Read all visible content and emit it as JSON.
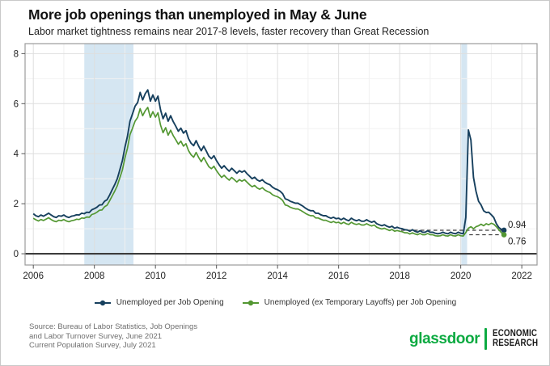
{
  "header": {
    "title": "More job openings than unemployed in May & June",
    "subtitle": "Labor market tightness remains near 2017-8 levels, faster recovery than Great Recession"
  },
  "chart_data": {
    "type": "line",
    "title": "More job openings than unemployed in May & June",
    "xlabel": "",
    "ylabel": "",
    "x_start": 2006.0,
    "x_step": 0.0833333,
    "xlim": [
      2005.73,
      2022.5
    ],
    "ylim": [
      -0.45,
      8.4
    ],
    "xticks": [
      2006,
      2008,
      2010,
      2012,
      2014,
      2016,
      2018,
      2020,
      2022
    ],
    "yticks": [
      0,
      2,
      4,
      6,
      8
    ],
    "grid": "on",
    "legend_position": "bottom",
    "recession_band_color": "#d5e6f2",
    "recession_bands": [
      {
        "from": 2007.67,
        "to": 2009.28
      },
      {
        "from": 2020.02,
        "to": 2020.21
      }
    ],
    "series": [
      {
        "name": "Unemployed per Job Opening",
        "color": "#17405e",
        "values": [
          1.6,
          1.52,
          1.48,
          1.55,
          1.5,
          1.56,
          1.62,
          1.55,
          1.48,
          1.45,
          1.52,
          1.5,
          1.55,
          1.48,
          1.45,
          1.5,
          1.52,
          1.56,
          1.55,
          1.62,
          1.6,
          1.66,
          1.65,
          1.76,
          1.8,
          1.86,
          1.95,
          1.96,
          2.1,
          2.16,
          2.35,
          2.56,
          2.76,
          3.0,
          3.35,
          3.72,
          4.25,
          4.7,
          5.3,
          5.6,
          5.9,
          6.05,
          6.45,
          6.15,
          6.4,
          6.55,
          6.1,
          6.35,
          6.1,
          6.3,
          5.75,
          5.4,
          5.62,
          5.3,
          5.52,
          5.28,
          5.1,
          4.9,
          5.02,
          4.82,
          4.92,
          4.6,
          4.42,
          4.32,
          4.52,
          4.3,
          4.12,
          4.3,
          4.1,
          3.9,
          3.8,
          3.92,
          3.72,
          3.56,
          3.42,
          3.52,
          3.4,
          3.3,
          3.42,
          3.32,
          3.22,
          3.32,
          3.26,
          3.32,
          3.2,
          3.1,
          3.0,
          3.06,
          2.95,
          2.9,
          2.96,
          2.86,
          2.8,
          2.76,
          2.66,
          2.6,
          2.56,
          2.5,
          2.4,
          2.2,
          2.16,
          2.1,
          2.06,
          2.02,
          2.02,
          1.96,
          1.9,
          1.82,
          1.76,
          1.72,
          1.72,
          1.62,
          1.62,
          1.56,
          1.52,
          1.52,
          1.46,
          1.42,
          1.46,
          1.4,
          1.42,
          1.36,
          1.42,
          1.36,
          1.32,
          1.42,
          1.36,
          1.32,
          1.36,
          1.3,
          1.3,
          1.36,
          1.3,
          1.26,
          1.3,
          1.2,
          1.16,
          1.12,
          1.16,
          1.1,
          1.06,
          1.1,
          1.02,
          1.06,
          1.02,
          1.0,
          0.96,
          0.95,
          0.9,
          0.96,
          0.9,
          0.86,
          0.92,
          0.86,
          0.86,
          0.92,
          0.86,
          0.86,
          0.82,
          0.8,
          0.82,
          0.86,
          0.82,
          0.8,
          0.86,
          0.82,
          0.8,
          0.86,
          0.82,
          0.8,
          1.45,
          4.95,
          4.55,
          3.05,
          2.5,
          2.1,
          1.95,
          1.72,
          1.65,
          1.66,
          1.56,
          1.45,
          1.2,
          1.05,
          0.97,
          0.94
        ]
      },
      {
        "name": "Unemployed (ex Temporary Layoffs) per Job Opening",
        "color": "#539732",
        "values": [
          1.42,
          1.36,
          1.31,
          1.37,
          1.33,
          1.38,
          1.44,
          1.37,
          1.31,
          1.28,
          1.34,
          1.32,
          1.37,
          1.31,
          1.28,
          1.32,
          1.34,
          1.38,
          1.37,
          1.43,
          1.42,
          1.47,
          1.46,
          1.57,
          1.6,
          1.66,
          1.74,
          1.75,
          1.88,
          1.94,
          2.12,
          2.31,
          2.5,
          2.72,
          3.03,
          3.35,
          3.82,
          4.22,
          4.76,
          5.02,
          5.3,
          5.45,
          5.8,
          5.52,
          5.72,
          5.85,
          5.45,
          5.68,
          5.46,
          5.64,
          5.14,
          4.84,
          5.04,
          4.74,
          4.94,
          4.72,
          4.56,
          4.38,
          4.5,
          4.3,
          4.4,
          4.12,
          3.96,
          3.86,
          4.05,
          3.85,
          3.68,
          3.85,
          3.66,
          3.48,
          3.4,
          3.5,
          3.32,
          3.18,
          3.05,
          3.14,
          3.03,
          2.94,
          3.05,
          2.96,
          2.87,
          2.96,
          2.9,
          2.96,
          2.86,
          2.76,
          2.68,
          2.73,
          2.63,
          2.58,
          2.64,
          2.55,
          2.49,
          2.45,
          2.36,
          2.31,
          2.28,
          2.22,
          2.13,
          1.95,
          1.92,
          1.86,
          1.82,
          1.79,
          1.79,
          1.74,
          1.68,
          1.61,
          1.56,
          1.52,
          1.52,
          1.43,
          1.43,
          1.38,
          1.34,
          1.34,
          1.29,
          1.25,
          1.29,
          1.24,
          1.26,
          1.2,
          1.26,
          1.2,
          1.17,
          1.26,
          1.2,
          1.17,
          1.2,
          1.15,
          1.15,
          1.2,
          1.15,
          1.11,
          1.15,
          1.06,
          1.02,
          0.99,
          1.02,
          0.97,
          0.93,
          0.97,
          0.9,
          0.93,
          0.9,
          0.88,
          0.84,
          0.84,
          0.79,
          0.84,
          0.79,
          0.76,
          0.81,
          0.76,
          0.76,
          0.81,
          0.76,
          0.76,
          0.72,
          0.71,
          0.72,
          0.76,
          0.72,
          0.71,
          0.76,
          0.72,
          0.71,
          0.76,
          0.72,
          0.71,
          0.85,
          1.02,
          1.08,
          1.0,
          1.08,
          1.12,
          1.18,
          1.12,
          1.2,
          1.16,
          1.22,
          1.18,
          1.08,
          0.96,
          0.84,
          0.76
        ]
      }
    ],
    "reference_lines": [
      {
        "value": 0.94,
        "from": 2018.05,
        "to": 2021.42,
        "color": "#3b3b3b",
        "label": "0.94"
      },
      {
        "value": 0.76,
        "from": 2020.28,
        "to": 2021.42,
        "color": "#3b3b3b",
        "label": "0.76"
      }
    ]
  },
  "legend": {
    "items": [
      {
        "label": "Unemployed per Job Opening",
        "color": "#17405e"
      },
      {
        "label": "Unemployed (ex Temporary Layoffs) per Job Opening",
        "color": "#539732"
      }
    ]
  },
  "footer": {
    "source_lines": [
      "Source: Bureau of Labor Statistics, Job Openings",
      "and Labor Turnover Survey, June 2021",
      "Current Population Survey, July 2021"
    ],
    "brand": {
      "wordmark": "glassdoor",
      "unit_line1": "ECONOMIC",
      "unit_line2": "RESEARCH",
      "green": "#0caa41"
    }
  }
}
